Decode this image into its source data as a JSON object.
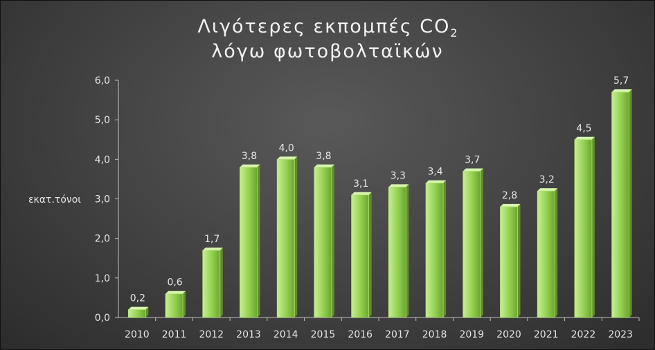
{
  "chart_data": {
    "type": "bar",
    "title_main": "Λιγότερες εκπομπές CO",
    "title_subscript": "2",
    "title_line2": "λόγω φωτοβολταϊκών",
    "ylabel": "εκατ.τόνοι",
    "xlabel": "",
    "categories": [
      "2010",
      "2011",
      "2012",
      "2013",
      "2014",
      "2015",
      "2016",
      "2017",
      "2018",
      "2019",
      "2020",
      "2021",
      "2022",
      "2023"
    ],
    "values": [
      0.2,
      0.6,
      1.7,
      3.8,
      4.0,
      3.8,
      3.1,
      3.3,
      3.4,
      3.7,
      2.8,
      3.2,
      4.5,
      5.7
    ],
    "data_labels": [
      "0,2",
      "0,6",
      "1,7",
      "3,8",
      "4,0",
      "3,8",
      "3,1",
      "3,3",
      "3,4",
      "3,7",
      "2,8",
      "3,2",
      "4,5",
      "5,7"
    ],
    "ylim": [
      0,
      6
    ],
    "yticks": [
      0,
      1,
      2,
      3,
      4,
      5,
      6
    ],
    "ytick_labels": [
      "0,0",
      "1,0",
      "2,0",
      "3,0",
      "4,0",
      "5,0",
      "6,0"
    ],
    "grid": false,
    "legend": "none",
    "bar_color": "#92d050",
    "bar_highlight": "#c6ef8f",
    "background": "#454545",
    "text_color": "#e6e6e6"
  }
}
